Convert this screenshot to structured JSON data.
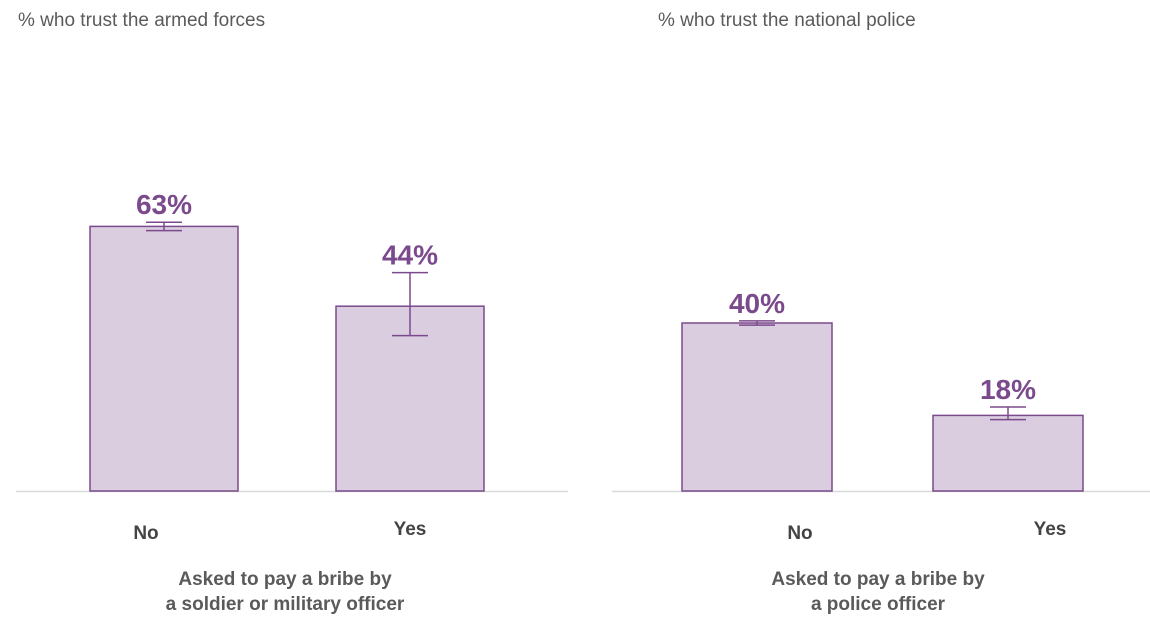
{
  "colors": {
    "bar_fill": "#dacde0",
    "bar_stroke": "#7b4a8c",
    "value_text": "#7b4a8c",
    "axis": "#d9d9d9"
  },
  "chart_data": [
    {
      "type": "bar",
      "title": "% who trust the armed forces",
      "categories": [
        "No",
        "Yes"
      ],
      "values": [
        63,
        44
      ],
      "error_bars": [
        [
          62,
          64
        ],
        [
          37,
          52
        ]
      ],
      "value_labels": [
        "63%",
        "44%"
      ],
      "xlabel": [
        "Asked to pay a bribe by",
        "a soldier or military officer"
      ],
      "ylabel": "",
      "ylim": [
        0,
        100
      ]
    },
    {
      "type": "bar",
      "title": "% who trust the national police",
      "categories": [
        "No",
        "Yes"
      ],
      "values": [
        40,
        18
      ],
      "error_bars": [
        [
          39.5,
          40.5
        ],
        [
          17,
          20
        ]
      ],
      "value_labels": [
        "40%",
        "18%"
      ],
      "xlabel": [
        "Asked to pay a bribe by",
        "a police officer"
      ],
      "ylabel": "",
      "ylim": [
        0,
        100
      ]
    }
  ]
}
